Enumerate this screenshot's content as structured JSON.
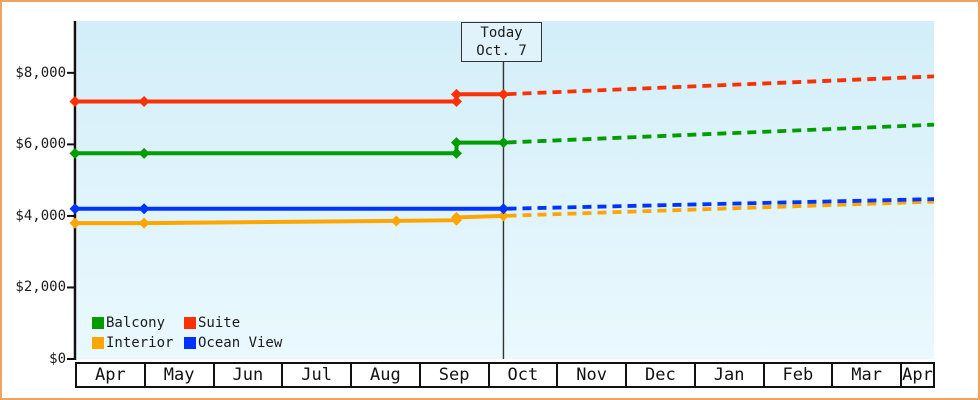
{
  "page": {
    "border_color": "#EBA55C",
    "background_color": "#FFFFFF",
    "plot_bg_top": "#D3EEF9",
    "plot_bg_bottom": "#EAF9FE",
    "axis_color": "#111111",
    "today_line_color": "#333333",
    "text_color": "#1B1B1B"
  },
  "chart_data": {
    "type": "line",
    "title": "",
    "xlabel": "",
    "ylabel": "",
    "description": "Cruise cabin price history (solid) and forecast (dashed) by month",
    "x_axis": {
      "labels": [
        "Apr",
        "May",
        "Jun",
        "Jul",
        "Aug",
        "Sep",
        "Oct",
        "Nov",
        "Dec",
        "Jan",
        "Feb",
        "Mar",
        "Apr"
      ],
      "xlim": [
        0,
        12.43
      ],
      "grid": false
    },
    "y_axis": {
      "ticks": [
        {
          "value": 0,
          "label": "$0"
        },
        {
          "value": 2000,
          "label": "$2,000"
        },
        {
          "value": 4000,
          "label": "$4,000"
        },
        {
          "value": 6000,
          "label": "$6,000"
        },
        {
          "value": 8000,
          "label": "$8,000"
        }
      ],
      "ylim": [
        0,
        9450
      ],
      "grid": false
    },
    "today_marker": {
      "x": 6.2,
      "title": "Today",
      "date": "Oct. 7"
    },
    "series": [
      {
        "name": "Balcony",
        "color": "#009C00",
        "solid": [
          {
            "x": 0,
            "y": 5750
          },
          {
            "x": 1,
            "y": 5750
          },
          {
            "x": 5.52,
            "y": 5750
          },
          {
            "x": 5.52,
            "y": 6050
          },
          {
            "x": 6.2,
            "y": 6050
          }
        ],
        "forecast": [
          {
            "x": 6.2,
            "y": 6050
          },
          {
            "x": 12.43,
            "y": 6550
          }
        ]
      },
      {
        "name": "Suite",
        "color": "#FB3003",
        "solid": [
          {
            "x": 0,
            "y": 7200
          },
          {
            "x": 1,
            "y": 7200
          },
          {
            "x": 5.52,
            "y": 7200
          },
          {
            "x": 5.52,
            "y": 7400
          },
          {
            "x": 6.2,
            "y": 7400
          }
        ],
        "forecast": [
          {
            "x": 6.2,
            "y": 7400
          },
          {
            "x": 12.43,
            "y": 7900
          }
        ]
      },
      {
        "name": "Interior",
        "color": "#FFA500",
        "solid": [
          {
            "x": 0,
            "y": 3800
          },
          {
            "x": 1,
            "y": 3800
          },
          {
            "x": 4.65,
            "y": 3860
          },
          {
            "x": 5.52,
            "y": 3880
          },
          {
            "x": 5.52,
            "y": 3960
          },
          {
            "x": 6.2,
            "y": 4000
          }
        ],
        "forecast": [
          {
            "x": 6.2,
            "y": 4000
          },
          {
            "x": 12.43,
            "y": 4400
          }
        ]
      },
      {
        "name": "Ocean View",
        "color": "#0033FF",
        "solid": [
          {
            "x": 0,
            "y": 4200
          },
          {
            "x": 1,
            "y": 4200
          },
          {
            "x": 6.2,
            "y": 4200
          }
        ],
        "forecast": [
          {
            "x": 6.2,
            "y": 4200
          },
          {
            "x": 12.43,
            "y": 4470
          }
        ]
      }
    ],
    "legend": {
      "position": "bottom-left",
      "entries": [
        {
          "label": "Balcony",
          "color": "#009C00"
        },
        {
          "label": "Suite",
          "color": "#FB3003"
        },
        {
          "label": "Interior",
          "color": "#FFA500"
        },
        {
          "label": "Ocean View",
          "color": "#0033FF"
        }
      ]
    }
  }
}
